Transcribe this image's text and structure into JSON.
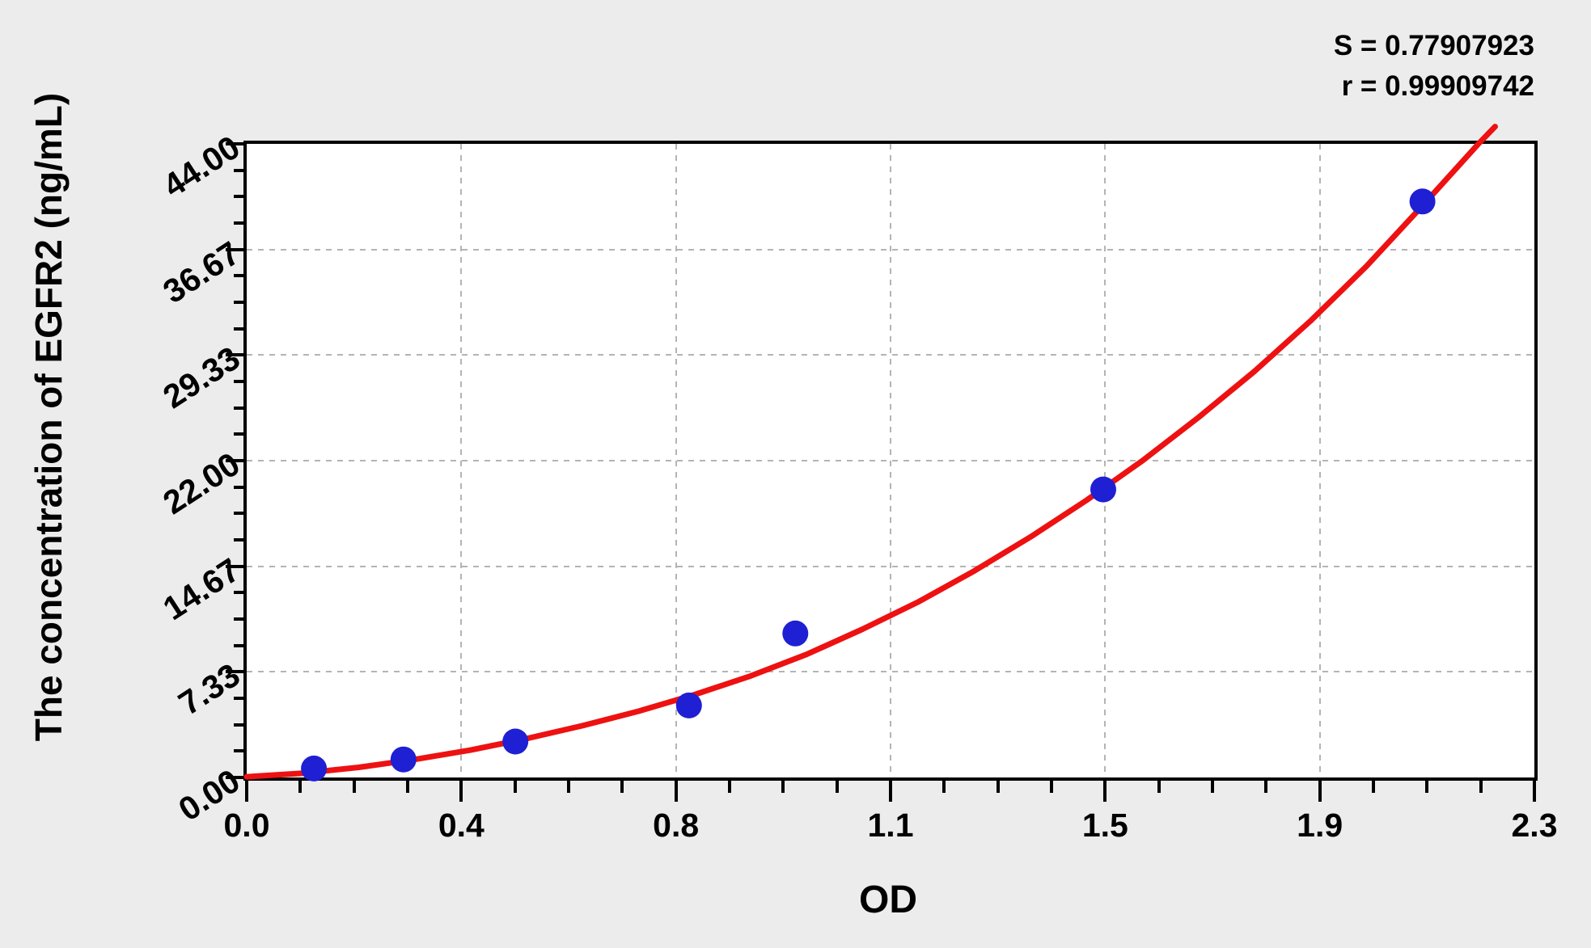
{
  "figure": {
    "background_color": "#ececec",
    "plot_background_color": "#ffffff",
    "axis_color": "#000000"
  },
  "chart_data": {
    "type": "scatter",
    "title": "",
    "xlabel": "OD",
    "ylabel": "The concentration of EGFR2 (ng/mL)",
    "annotations": {
      "s_value": "S = 0.77907923",
      "r_value": "r = 0.99909742"
    },
    "xlim": [
      0,
      2.3
    ],
    "ylim": [
      0,
      44
    ],
    "x_tick_labels": [
      "0.0",
      "0.4",
      "0.8",
      "1.1",
      "1.5",
      "1.9",
      "2.3"
    ],
    "y_tick_labels": [
      "0.00",
      "7.33",
      "14.67",
      "22.00",
      "29.33",
      "36.67",
      "44.00"
    ],
    "minor_ticks_per_major": 4,
    "grid": {
      "style": "dashed",
      "color": "#b4b4b4",
      "at": "major-ticks"
    },
    "legend": "none",
    "series": [
      {
        "name": "standard-points",
        "type": "scatter",
        "color": "#1f1fd3",
        "marker_radius_px": 16,
        "points": [
          {
            "od": 0.12,
            "conc": 0.625
          },
          {
            "od": 0.28,
            "conc": 1.25
          },
          {
            "od": 0.48,
            "conc": 2.5
          },
          {
            "od": 0.79,
            "conc": 5
          },
          {
            "od": 0.98,
            "conc": 10
          },
          {
            "od": 1.53,
            "conc": 20
          },
          {
            "od": 2.1,
            "conc": 40
          }
        ]
      },
      {
        "name": "fitted-curve",
        "type": "line",
        "color": "#ee1111",
        "stroke_width_px": 7,
        "points": [
          [
            0.0,
            0.05
          ],
          [
            0.1,
            0.3
          ],
          [
            0.2,
            0.7
          ],
          [
            0.3,
            1.25
          ],
          [
            0.4,
            1.9
          ],
          [
            0.5,
            2.7
          ],
          [
            0.6,
            3.6
          ],
          [
            0.7,
            4.6
          ],
          [
            0.8,
            5.75
          ],
          [
            0.9,
            7.05
          ],
          [
            1.0,
            8.55
          ],
          [
            1.1,
            10.3
          ],
          [
            1.2,
            12.2
          ],
          [
            1.3,
            14.35
          ],
          [
            1.4,
            16.7
          ],
          [
            1.5,
            19.25
          ],
          [
            1.6,
            22.0
          ],
          [
            1.7,
            25.0
          ],
          [
            1.8,
            28.2
          ],
          [
            1.9,
            31.7
          ],
          [
            2.0,
            35.5
          ],
          [
            2.1,
            39.7
          ],
          [
            2.2,
            44.0
          ],
          [
            2.23,
            45.2
          ]
        ]
      }
    ]
  }
}
